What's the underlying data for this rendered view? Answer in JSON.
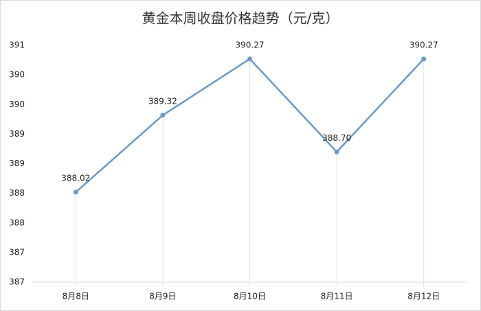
{
  "chart_data": {
    "type": "line",
    "title": "黄金本周收盘价格趋势（元/克）",
    "categories": [
      "8月8日",
      "8月9日",
      "8月10日",
      "8月11日",
      "8月12日"
    ],
    "series": [
      {
        "name": "收盘价格",
        "color": "#6a9ac4",
        "values": [
          388.02,
          389.32,
          390.27,
          388.7,
          390.27
        ],
        "value_labels": [
          "388.02",
          "389.32",
          "390.27",
          "388.70",
          "390.27"
        ]
      }
    ],
    "ylim": [
      386.5,
      390.5
    ],
    "yticks": [
      {
        "value": 386.5,
        "label": "387"
      },
      387,
      {
        "value": 387.5,
        "label": "388"
      },
      388,
      {
        "value": 388.5,
        "label": "389"
      },
      389,
      {
        "value": 389.5,
        "label": "390"
      },
      390,
      {
        "value": 390.5,
        "label": "391"
      }
    ],
    "drop_lines": true
  }
}
